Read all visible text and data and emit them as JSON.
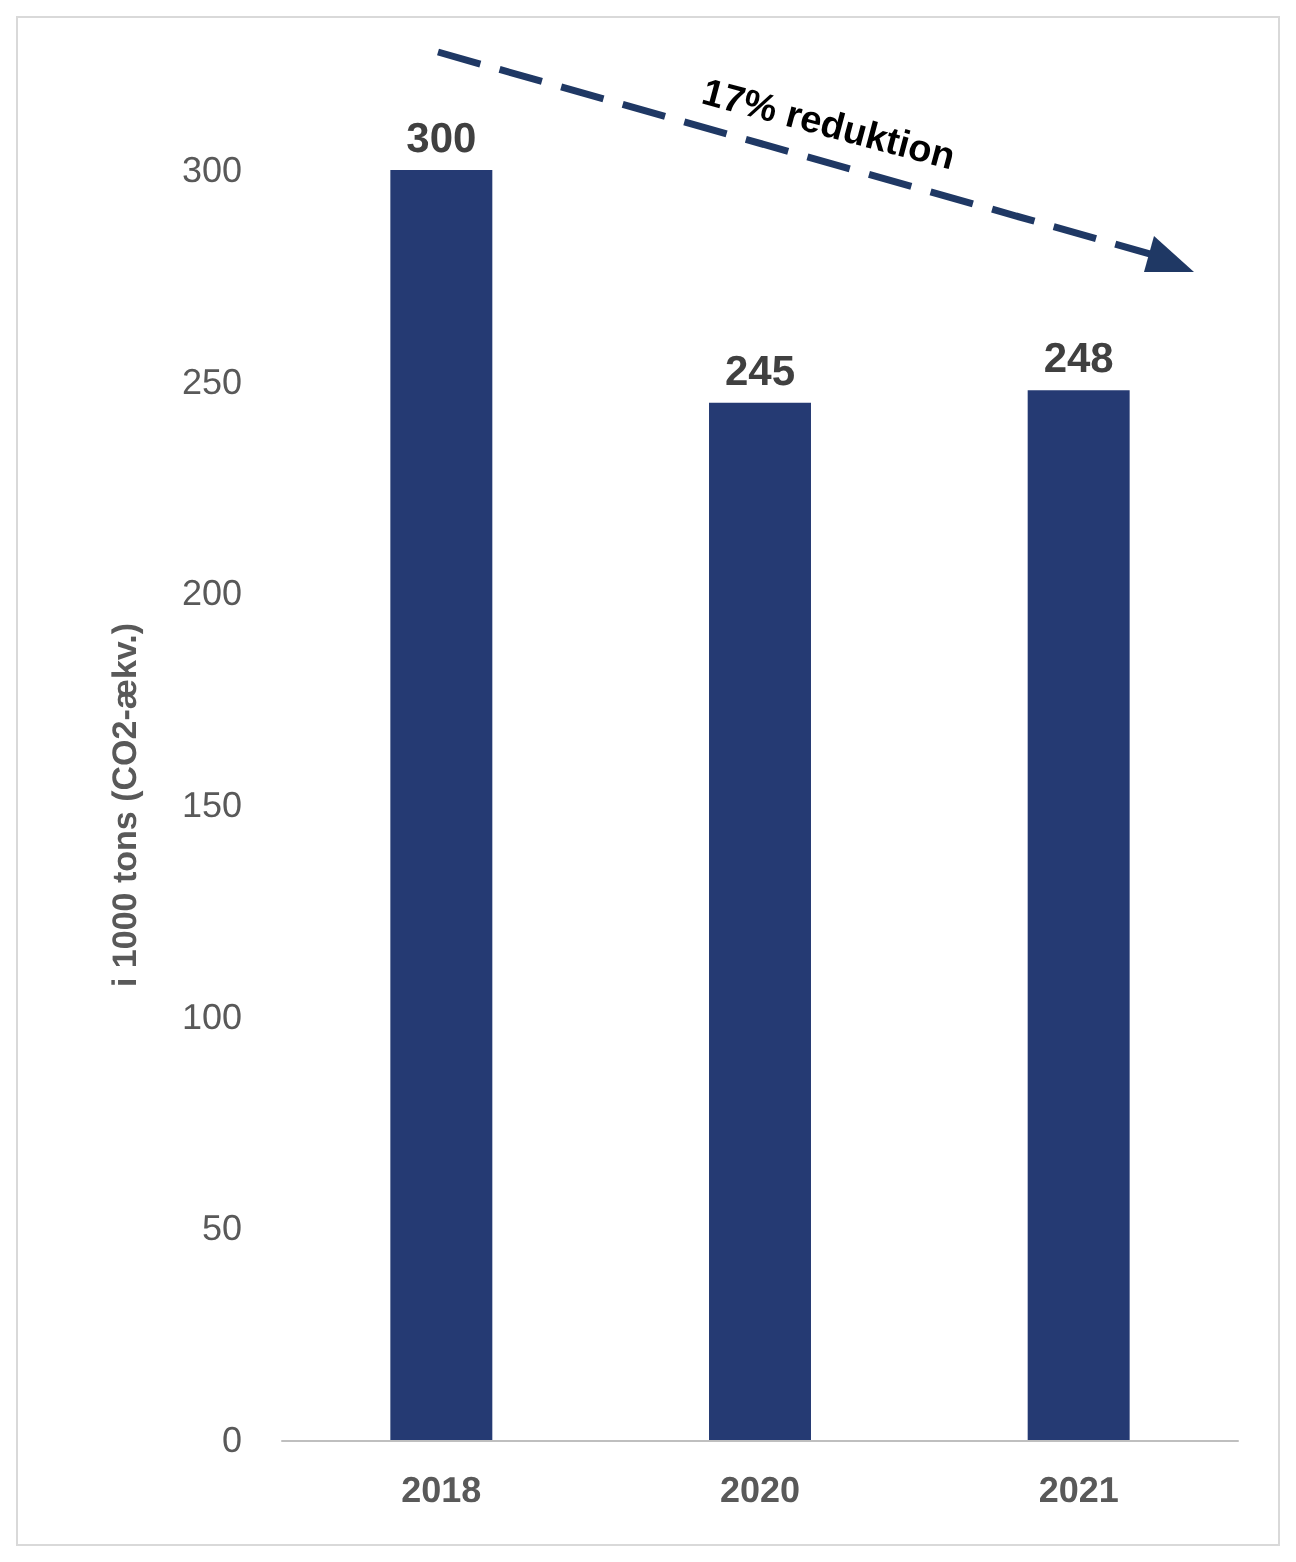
{
  "chart_data": {
    "type": "bar",
    "ylabel": "i 1000 tons (CO2-ækv.)",
    "categories": [
      "2018",
      "2020",
      "2021"
    ],
    "values": [
      300,
      245,
      248
    ],
    "color": "#253a73",
    "ylim": [
      0,
      300
    ],
    "yticks": [
      0,
      50,
      100,
      150,
      200,
      250,
      300
    ],
    "grid": false,
    "data_labels": true,
    "annotations": [
      "17% reduktion"
    ]
  }
}
